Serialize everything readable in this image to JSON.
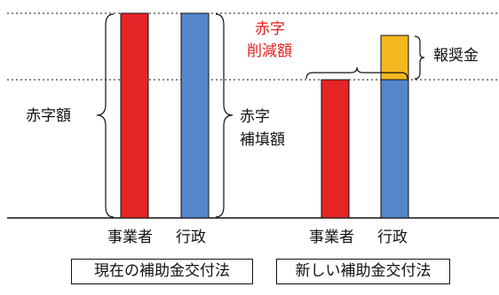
{
  "colors": {
    "operator": "#e52426",
    "government": "#5585cb",
    "reward": "#f3b81f",
    "accent_red": "#e3201c",
    "line": "#111111"
  },
  "labels": {
    "deficit_amount": "赤字額",
    "deficit_compensation_line1": "赤字",
    "deficit_compensation_line2": "補填額",
    "deficit_reduction_line1": "赤字",
    "deficit_reduction_line2": "削減額",
    "reward": "報奨金",
    "operator": "事業者",
    "government": "行政"
  },
  "captions": {
    "current": "現在の補助金交付法",
    "new": "新しい補助金交付法"
  }
}
